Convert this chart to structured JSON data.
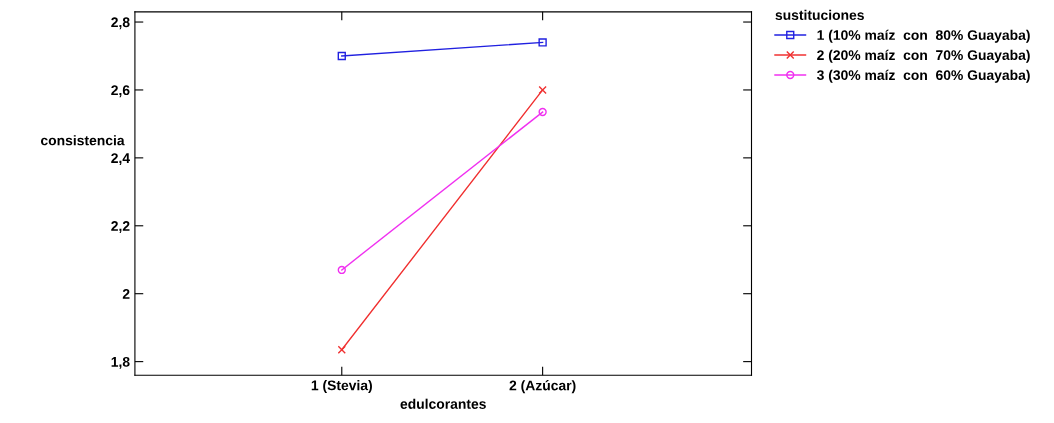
{
  "chart_data": {
    "type": "line",
    "xlabel": "edulcorantes",
    "ylabel": "consistencia",
    "legend_title": "sustituciones",
    "categories": [
      "1 (Stevia)",
      "2 (Azúcar)"
    ],
    "series": [
      {
        "name": "1 (10% maíz  con  80% Guayaba)",
        "color": "#2020e0",
        "marker": "square",
        "values": [
          2.7,
          2.74
        ]
      },
      {
        "name": "2 (20% maíz  con  70% Guayaba)",
        "color": "#f03030",
        "marker": "cross",
        "values": [
          1.835,
          2.6
        ]
      },
      {
        "name": "3 (30% maíz  con  60% Guayaba)",
        "color": "#f030f0",
        "marker": "circle",
        "values": [
          2.07,
          2.535
        ]
      }
    ],
    "ylim": [
      1.76,
      2.83
    ],
    "yticks": [
      {
        "value": 1.8,
        "label": "1,8"
      },
      2,
      {
        "value": 2.2,
        "label": "2,2"
      },
      {
        "value": 2.4,
        "label": "2,4"
      },
      {
        "value": 2.6,
        "label": "2,6"
      },
      {
        "value": 2.8,
        "label": "2,8"
      }
    ],
    "grid": false,
    "legend": "top right",
    "line_style": "solid"
  }
}
